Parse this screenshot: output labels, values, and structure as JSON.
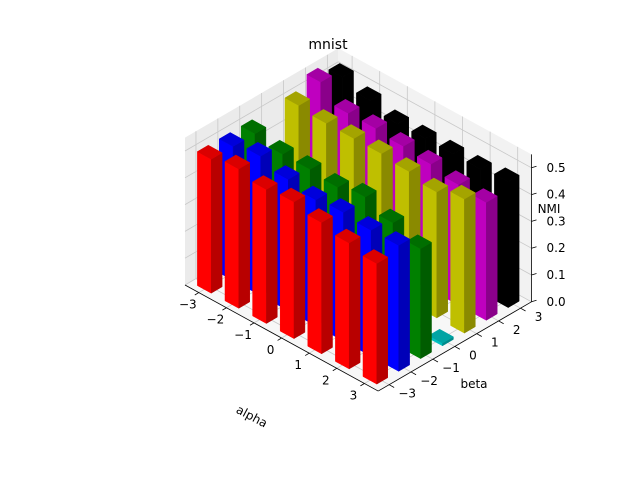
{
  "chart_data": {
    "type": "bar3d",
    "title": "mnist",
    "xlabel": "alpha",
    "ylabel": "beta",
    "zlabel": "NMI",
    "x_ticks": [
      "−3",
      "−2",
      "−1",
      "0",
      "1",
      "2",
      "3"
    ],
    "y_ticks": [
      "−3",
      "−2",
      "−1",
      "0",
      "1",
      "2",
      "3"
    ],
    "z_ticks": [
      "0.0",
      "0.1",
      "0.2",
      "0.3",
      "0.4",
      "0.5"
    ],
    "xlim": [
      -3.5,
      3.5
    ],
    "ylim": [
      -3.5,
      3.5
    ],
    "zlim": [
      0,
      0.55
    ],
    "grid": true,
    "x": [
      -3,
      -2,
      -1,
      0,
      1,
      2,
      3
    ],
    "series": [
      {
        "beta": -3,
        "color": "#ff0000",
        "values": [
          0.5,
          0.52,
          0.5,
          0.51,
          0.49,
          0.47,
          0.45
        ]
      },
      {
        "beta": -2,
        "color": "#0000ff",
        "values": [
          0.5,
          0.52,
          0.49,
          0.47,
          0.48,
          0.47,
          0.47
        ]
      },
      {
        "beta": -1,
        "color": "#008000",
        "values": [
          0.5,
          0.48,
          0.48,
          0.47,
          0.49,
          0.45,
          0.41
        ]
      },
      {
        "beta": 0,
        "color": "#00bfbf",
        "values": [
          0.01,
          0.01,
          0.01,
          0.01,
          0.01,
          0.01,
          0.01
        ]
      },
      {
        "beta": 1,
        "color": "#bfbf00",
        "values": [
          0.51,
          0.5,
          0.5,
          0.5,
          0.49,
          0.47,
          0.5
        ]
      },
      {
        "beta": 2,
        "color": "#bf00bf",
        "values": [
          0.55,
          0.49,
          0.49,
          0.48,
          0.47,
          0.45,
          0.44
        ]
      },
      {
        "beta": 3,
        "color": "#000000",
        "values": [
          0.52,
          0.49,
          0.46,
          0.46,
          0.46,
          0.46,
          0.47
        ]
      }
    ]
  }
}
